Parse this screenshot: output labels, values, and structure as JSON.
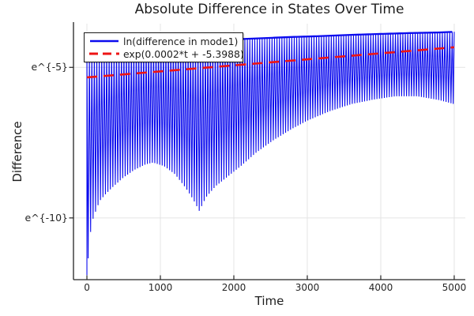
{
  "chart_data": {
    "type": "line",
    "title": "Absolute Difference in States Over Time",
    "xlabel": "Time",
    "ylabel": "Difference",
    "grid": true,
    "legend_position": "top-left",
    "xlim": [
      -183,
      5151
    ],
    "ylim_ln": [
      -12.05,
      -3.55
    ],
    "x_ticks": {
      "values": [
        0,
        1000,
        2000,
        3000,
        4000,
        5000
      ],
      "labels": [
        "0",
        "1000",
        "2000",
        "3000",
        "4000",
        "5000"
      ]
    },
    "y_ticks": {
      "ln_values": [
        -5,
        -10
      ],
      "labels": [
        "e^{-5}",
        "e^{-10}"
      ]
    },
    "colors": {
      "series_blue": "#0b0bee",
      "series_red": "#ee1414",
      "grid": "#e4e4e4",
      "axis": "#242424",
      "text": "#262626"
    },
    "series": [
      {
        "name": "ln(difference in mode1)",
        "style": "solid",
        "color_key": "series_blue",
        "t_range": [
          0,
          5000
        ],
        "spike_spacing_t": 33.6,
        "top_envelope_ln": [
          [
            0,
            -4.55
          ],
          [
            400,
            -4.38
          ],
          [
            800,
            -4.27
          ],
          [
            1200,
            -4.18
          ],
          [
            1600,
            -4.12
          ],
          [
            2000,
            -4.07
          ],
          [
            2400,
            -4.03
          ],
          [
            2800,
            -3.99
          ],
          [
            3200,
            -3.96
          ],
          [
            3600,
            -3.92
          ],
          [
            4000,
            -3.89
          ],
          [
            4400,
            -3.86
          ],
          [
            4800,
            -3.84
          ],
          [
            5000,
            -3.82
          ]
        ],
        "bottom_envelope_ln": [
          [
            0,
            -11.9
          ],
          [
            34,
            -10.77
          ],
          [
            67,
            -10.16
          ],
          [
            100,
            -9.9
          ],
          [
            130,
            -9.72
          ],
          [
            170,
            -9.45
          ],
          [
            250,
            -9.22
          ],
          [
            350,
            -8.98
          ],
          [
            500,
            -8.65
          ],
          [
            650,
            -8.4
          ],
          [
            800,
            -8.22
          ],
          [
            900,
            -8.16
          ],
          [
            1050,
            -8.28
          ],
          [
            1200,
            -8.55
          ],
          [
            1350,
            -9.02
          ],
          [
            1450,
            -9.4
          ],
          [
            1530,
            -9.77
          ],
          [
            1620,
            -9.32
          ],
          [
            1750,
            -8.95
          ],
          [
            1900,
            -8.66
          ],
          [
            2100,
            -8.27
          ],
          [
            2300,
            -7.84
          ],
          [
            2550,
            -7.4
          ],
          [
            2800,
            -7.03
          ],
          [
            3000,
            -6.77
          ],
          [
            3300,
            -6.46
          ],
          [
            3600,
            -6.22
          ],
          [
            3900,
            -6.07
          ],
          [
            4200,
            -5.96
          ],
          [
            4500,
            -5.96
          ],
          [
            4800,
            -6.09
          ],
          [
            5000,
            -6.22
          ]
        ]
      },
      {
        "name": "exp(0.0002*t + -5.3988)",
        "style": "dashed",
        "color_key": "series_red",
        "slope": 0.0002,
        "intercept": -5.3988,
        "t_range": [
          0,
          5000
        ]
      }
    ]
  }
}
